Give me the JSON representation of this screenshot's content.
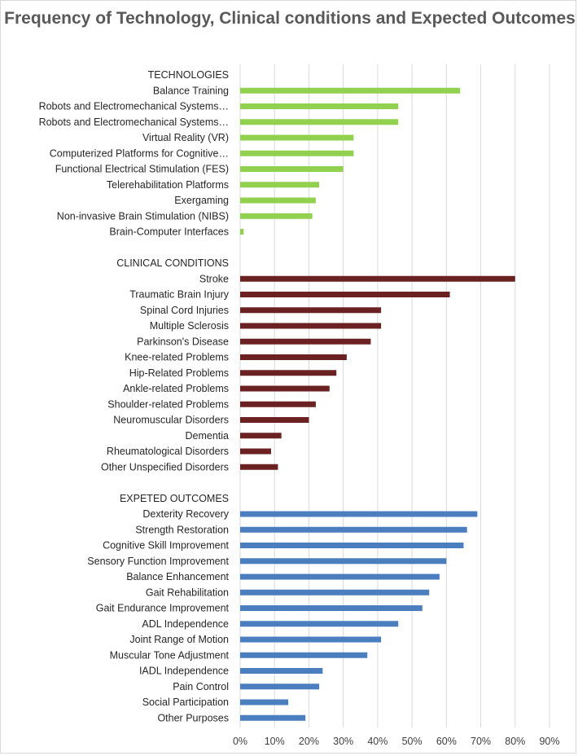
{
  "chart_data": {
    "type": "bar",
    "orientation": "horizontal",
    "title": "Frequency of  Technology, Clinical conditions and Expected Outcomes",
    "xlabel": "",
    "ylabel": "",
    "xlim": [
      0,
      90
    ],
    "x_ticks": [
      "0%",
      "10%",
      "20%",
      "30%",
      "40%",
      "50%",
      "60%",
      "70%",
      "80%",
      "90%"
    ],
    "grid": "vertical",
    "groups": [
      {
        "name": "TECHNOLOGIES",
        "color": "#92d050",
        "categories": [
          "Balance Training",
          "Robots and Electromechanical Systems…",
          "Robots and Electromechanical Systems…",
          "Virtual Reality (VR)",
          "Computerized Platforms for Cognitive…",
          "Functional Electrical Stimulation (FES)",
          "Telerehabilitation Platforms",
          "Exergaming",
          "Non-invasive Brain Stimulation (NIBS)",
          "Brain-Computer Interfaces"
        ],
        "values": [
          64,
          46,
          46,
          33,
          33,
          30,
          23,
          22,
          21,
          1
        ]
      },
      {
        "name": "CLINICAL CONDITIONS",
        "color": "#6b2121",
        "categories": [
          "Stroke",
          "Traumatic Brain Injury",
          "Spinal Cord Injuries",
          "Multiple Sclerosis",
          "Parkinson's Disease",
          "Knee-related Problems",
          "Hip-Related Problems",
          "Ankle-related Problems",
          "Shoulder-related Problems",
          "Neuromuscular Disorders",
          "Dementia",
          "Rheumatological Disorders",
          "Other Unspecified Disorders"
        ],
        "values": [
          80,
          61,
          41,
          41,
          38,
          31,
          28,
          26,
          22,
          20,
          12,
          9,
          11
        ]
      },
      {
        "name": "EXPETED OUTCOMES",
        "color": "#4a7ebf",
        "categories": [
          "Dexterity Recovery",
          "Strength Restoration",
          "Cognitive Skill Improvement",
          "Sensory Function Improvement",
          "Balance Enhancement",
          "Gait Rehabilitation",
          "Gait Endurance Improvement",
          "ADL Independence",
          "Joint Range of Motion",
          "Muscular Tone Adjustment",
          "IADL Independence",
          "Pain Control",
          "Social Participation",
          "Other Purposes"
        ],
        "values": [
          69,
          66,
          65,
          60,
          58,
          55,
          53,
          46,
          41,
          37,
          24,
          23,
          14,
          19
        ]
      }
    ]
  }
}
